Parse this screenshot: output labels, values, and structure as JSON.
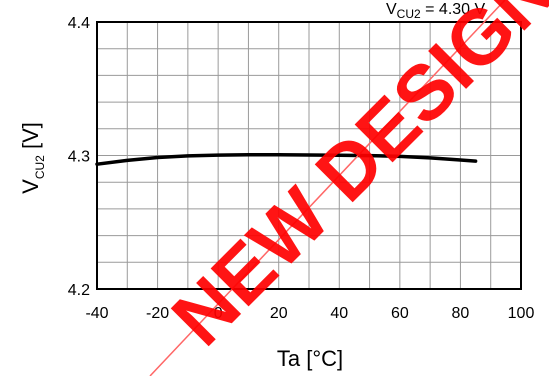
{
  "chart_data": {
    "type": "line",
    "title": "",
    "annotation": {
      "prefix": "V",
      "sub": "CU2",
      "rest": " = 4.30 V"
    },
    "xlabel": "Ta [°C]",
    "ylabel": {
      "main": "V",
      "sub": "CU2",
      "unit": " [V]"
    },
    "xlim": [
      -40,
      100
    ],
    "ylim": [
      4.2,
      4.4
    ],
    "x_ticks": [
      "-40",
      "-20",
      "0",
      "20",
      "40",
      "60",
      "80",
      "100"
    ],
    "y_ticks": [
      "4.2",
      "4.3",
      "4.4"
    ],
    "grid": true,
    "series": [
      {
        "color": "#000000",
        "x": [
          -40,
          -30,
          -20,
          -10,
          0,
          10,
          20,
          30,
          40,
          50,
          60,
          70,
          80,
          85
        ],
        "y": [
          4.2935,
          4.2963,
          4.2985,
          4.2997,
          4.3003,
          4.3005,
          4.3005,
          4.3004,
          4.3002,
          4.2999,
          4.2993,
          4.2982,
          4.2966,
          4.2958
        ]
      }
    ]
  },
  "watermark": {
    "text": "NEW DESIGN",
    "color": "#ff0000"
  }
}
